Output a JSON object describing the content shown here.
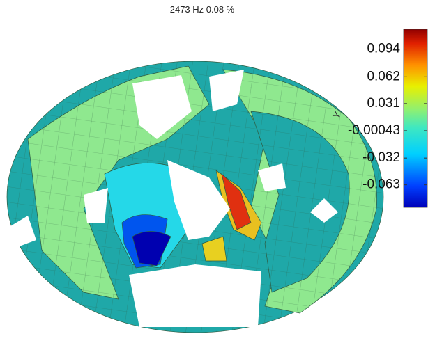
{
  "chart_data": {
    "type": "colormap",
    "title": "2473 Hz 0.08 %",
    "axis_label": "Y",
    "clim": [
      -0.089,
      0.117
    ],
    "cticks": [
      0.094,
      0.062,
      0.031,
      -0.00043,
      -0.032,
      -0.063
    ]
  }
}
